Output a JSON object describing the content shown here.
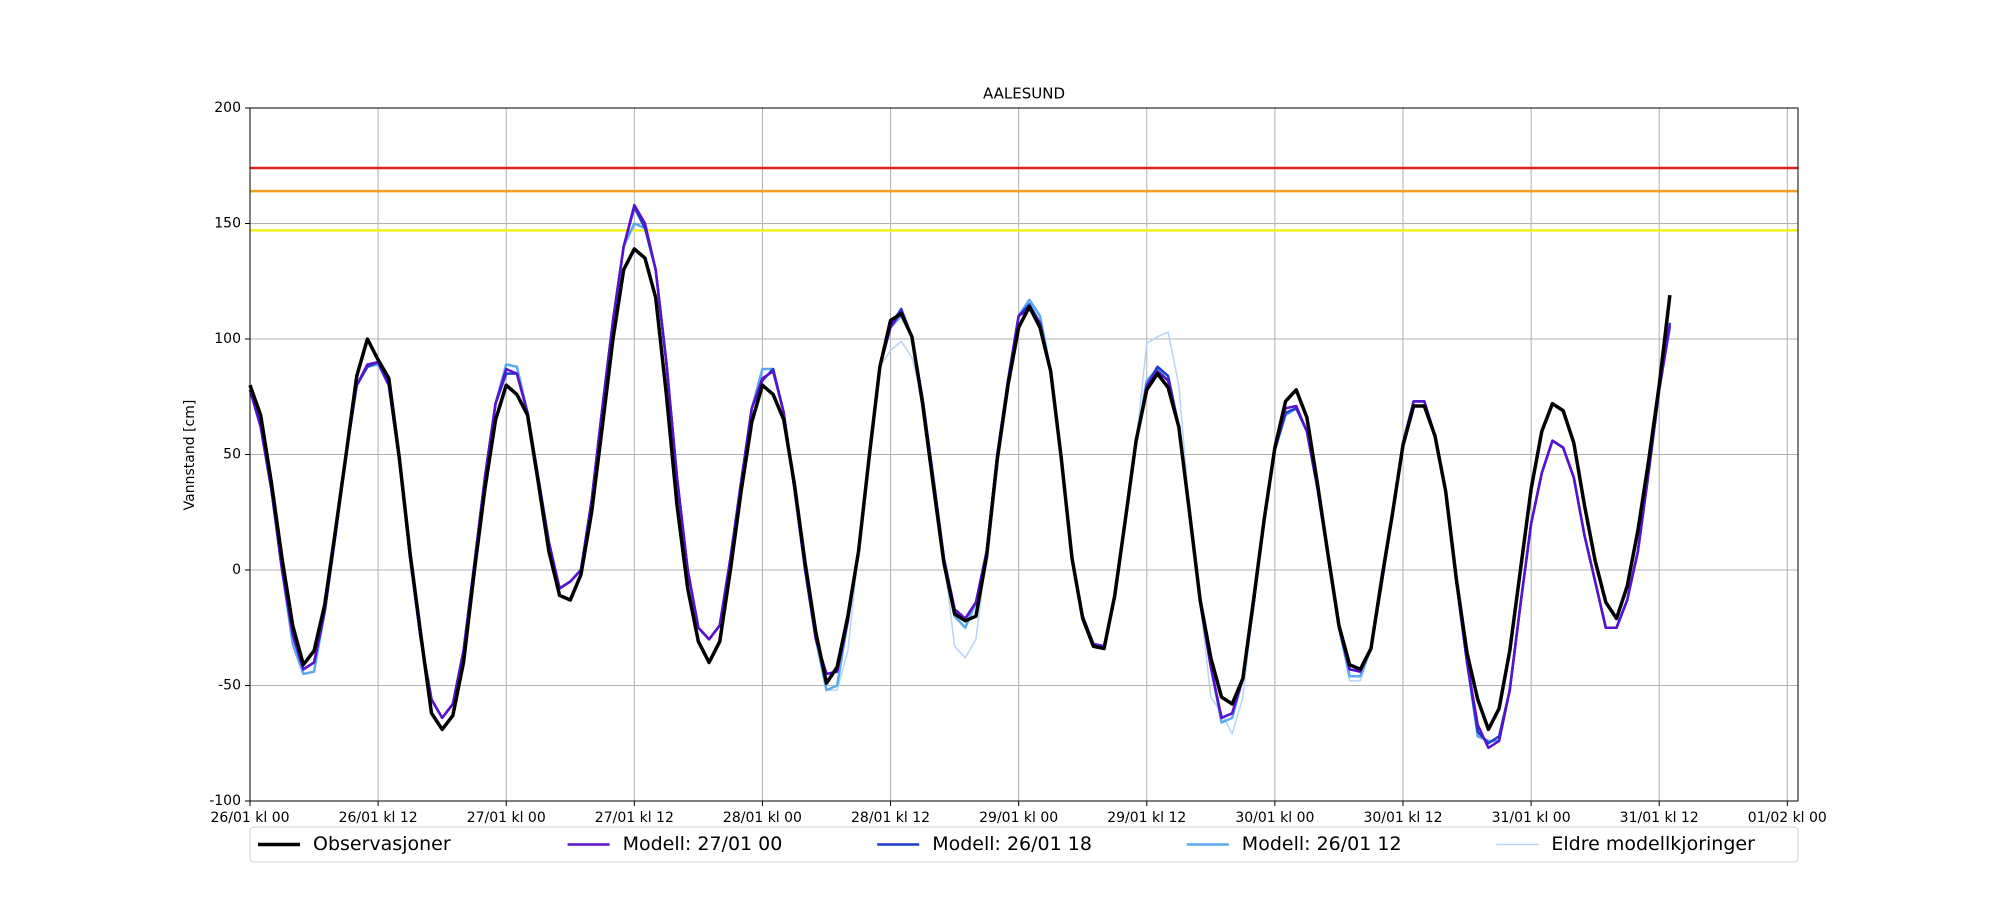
{
  "chart_data": {
    "type": "line",
    "title": "AALESUND",
    "y_label": "Vannstand [cm]",
    "xlim": [
      0,
      145
    ],
    "ylim": [
      -100,
      200
    ],
    "yticks": [
      -100,
      -50,
      0,
      50,
      100,
      150,
      200
    ],
    "xticks": [
      {
        "value": 0,
        "label": "26/01 kl 00"
      },
      {
        "value": 12,
        "label": "26/01 kl 12"
      },
      {
        "value": 24,
        "label": "27/01 kl 00"
      },
      {
        "value": 36,
        "label": "27/01 kl 12"
      },
      {
        "value": 48,
        "label": "28/01 kl 00"
      },
      {
        "value": 60,
        "label": "28/01 kl 12"
      },
      {
        "value": 72,
        "label": "29/01 kl 00"
      },
      {
        "value": 84,
        "label": "29/01 kl 12"
      },
      {
        "value": 96,
        "label": "30/01 kl 00"
      },
      {
        "value": 108,
        "label": "30/01 kl 12"
      },
      {
        "value": 120,
        "label": "31/01 kl 00"
      },
      {
        "value": 132,
        "label": "31/01 kl 12"
      },
      {
        "value": 144,
        "label": "01/02 kl 00"
      }
    ],
    "grid": true,
    "hlines": [
      {
        "value": 174,
        "color": "#e0201b"
      },
      {
        "value": 164,
        "color": "#f0a020"
      },
      {
        "value": 147,
        "color": "#f5f01a"
      }
    ],
    "x": [
      0,
      1,
      2,
      3,
      4,
      5,
      6,
      7,
      8,
      9,
      10,
      11,
      12,
      13,
      14,
      15,
      16,
      17,
      18,
      19,
      20,
      21,
      22,
      23,
      24,
      25,
      26,
      27,
      28,
      29,
      30,
      31,
      32,
      33,
      34,
      35,
      36,
      37,
      38,
      39,
      40,
      41,
      42,
      43,
      44,
      45,
      46,
      47,
      48,
      49,
      50,
      51,
      52,
      53,
      54,
      55,
      56,
      57,
      58,
      59,
      60,
      61,
      62,
      63,
      64,
      65,
      66,
      67,
      68,
      69,
      70,
      71,
      72,
      73,
      74,
      75,
      76,
      77,
      78,
      79,
      80,
      81,
      82,
      83,
      84,
      85,
      86,
      87,
      88,
      89,
      90,
      91,
      92,
      93,
      94,
      95,
      96,
      97,
      98,
      99,
      100,
      101,
      102,
      103,
      104,
      105,
      106,
      107,
      108,
      109,
      110,
      111,
      112,
      113,
      114,
      115,
      116,
      117,
      118,
      119,
      120,
      121,
      122,
      123,
      124,
      125,
      126,
      127,
      128,
      129,
      130,
      131,
      132,
      133
    ],
    "series": [
      {
        "name": "Eldre modellkjoringer",
        "color": "#b8d4f4",
        "width": 1.5,
        "values": [
          78,
          62,
          35,
          0,
          -32,
          -45,
          -44,
          -18,
          15,
          50,
          80,
          88,
          89,
          80,
          47,
          5,
          -30,
          -56,
          -64,
          -58,
          -35,
          2,
          40,
          72,
          89,
          88,
          68,
          40,
          12,
          -8,
          -5,
          0,
          30,
          70,
          108,
          140,
          150,
          148,
          130,
          90,
          40,
          0,
          -25,
          -30,
          -24,
          5,
          38,
          70,
          87,
          87,
          68,
          35,
          0,
          -30,
          -52,
          -52,
          -35,
          8,
          50,
          88,
          95,
          99,
          92,
          74,
          40,
          5,
          -33,
          -38,
          -30,
          8,
          50,
          82,
          110,
          117,
          110,
          86,
          48,
          5,
          -20,
          -32,
          -33,
          -12,
          22,
          55,
          98,
          101,
          103,
          80,
          26,
          -14,
          -55,
          -62,
          -71,
          -55,
          -15,
          22,
          52,
          67,
          70,
          60,
          35,
          5,
          -25,
          -48,
          -48,
          -34,
          -6,
          24,
          55,
          73,
          73,
          58,
          34,
          -5,
          -40,
          -72,
          -74,
          -74,
          -52,
          -15,
          20,
          42,
          56,
          53,
          40,
          15,
          -5,
          -25,
          -25,
          -13,
          8,
          42,
          78,
          105
        ]
      },
      {
        "name": "Modell: 26/01 12",
        "color": "#5aaaf0",
        "width": 2.5,
        "values": [
          78,
          62,
          35,
          0,
          -32,
          -45,
          -44,
          -18,
          15,
          50,
          80,
          88,
          89,
          80,
          47,
          5,
          -30,
          -56,
          -64,
          -58,
          -35,
          2,
          40,
          72,
          89,
          88,
          68,
          40,
          12,
          -8,
          -5,
          0,
          30,
          70,
          108,
          140,
          150,
          148,
          130,
          90,
          40,
          0,
          -25,
          -30,
          -24,
          5,
          38,
          70,
          87,
          87,
          68,
          35,
          0,
          -30,
          -52,
          -50,
          -22,
          8,
          50,
          88,
          105,
          110,
          101,
          74,
          40,
          5,
          -20,
          -25,
          -14,
          8,
          50,
          82,
          110,
          117,
          110,
          86,
          48,
          5,
          -20,
          -32,
          -33,
          -12,
          22,
          55,
          82,
          87,
          82,
          62,
          26,
          -14,
          -42,
          -66,
          -64,
          -47,
          -15,
          22,
          52,
          67,
          70,
          60,
          35,
          5,
          -25,
          -46,
          -46,
          -34,
          -6,
          24,
          55,
          73,
          73,
          58,
          34,
          -5,
          -40,
          -72,
          -74,
          -74,
          -52,
          -15,
          20,
          42,
          56,
          53,
          40,
          15,
          -5,
          -25,
          -25,
          -13,
          8,
          42,
          78,
          105
        ]
      },
      {
        "name": "Modell: 26/01 18",
        "color": "#1c3ccc",
        "width": 2.5,
        "values": [
          78,
          62,
          35,
          0,
          -28,
          -43,
          -40,
          -18,
          15,
          50,
          80,
          88,
          90,
          80,
          47,
          5,
          -30,
          -56,
          -64,
          -58,
          -35,
          2,
          40,
          72,
          85,
          85,
          68,
          40,
          12,
          -8,
          -5,
          0,
          30,
          70,
          108,
          140,
          157,
          148,
          130,
          90,
          40,
          0,
          -25,
          -30,
          -24,
          5,
          38,
          70,
          82,
          87,
          68,
          35,
          0,
          -30,
          -45,
          -44,
          -22,
          8,
          50,
          88,
          106,
          113,
          101,
          74,
          40,
          5,
          -17,
          -21,
          -14,
          8,
          50,
          82,
          110,
          115,
          107,
          86,
          48,
          5,
          -20,
          -32,
          -33,
          -12,
          22,
          55,
          80,
          88,
          84,
          62,
          26,
          -14,
          -42,
          -64,
          -62,
          -47,
          -15,
          22,
          52,
          68,
          70,
          60,
          35,
          5,
          -25,
          -43,
          -44,
          -34,
          -6,
          24,
          55,
          73,
          73,
          58,
          34,
          -5,
          -40,
          -70,
          -75,
          -72,
          -52,
          -15,
          20,
          42,
          56,
          53,
          40,
          15,
          -5,
          -25,
          -25,
          -13,
          8,
          42,
          78,
          107
        ]
      },
      {
        "name": "Modell: 27/01 00",
        "color": "#5a10cc",
        "width": 2.5,
        "values": [
          78,
          62,
          35,
          0,
          -28,
          -43,
          -40,
          -18,
          15,
          50,
          80,
          89,
          90,
          80,
          47,
          5,
          -30,
          -56,
          -64,
          -58,
          -35,
          2,
          40,
          72,
          87,
          85,
          68,
          40,
          12,
          -8,
          -5,
          0,
          30,
          70,
          108,
          140,
          158,
          150,
          130,
          90,
          40,
          0,
          -25,
          -30,
          -24,
          5,
          38,
          70,
          83,
          86,
          68,
          35,
          0,
          -30,
          -45,
          -44,
          -22,
          8,
          50,
          88,
          105,
          112,
          101,
          74,
          40,
          5,
          -17,
          -21,
          -14,
          8,
          50,
          82,
          110,
          113,
          107,
          86,
          48,
          5,
          -20,
          -32,
          -33,
          -12,
          22,
          55,
          80,
          86,
          82,
          62,
          26,
          -14,
          -42,
          -64,
          -62,
          -47,
          -15,
          22,
          52,
          70,
          71,
          60,
          35,
          5,
          -25,
          -43,
          -44,
          -34,
          -6,
          24,
          55,
          73,
          73,
          58,
          34,
          -5,
          -40,
          -67,
          -77,
          -74,
          -52,
          -15,
          20,
          42,
          56,
          53,
          40,
          15,
          -5,
          -25,
          -25,
          -13,
          8,
          42,
          78,
          106
        ]
      },
      {
        "name": "Observasjoner",
        "color": "#000000",
        "width": 3.5,
        "values": [
          80,
          67,
          38,
          5,
          -24,
          -41,
          -35,
          -15,
          17,
          50,
          84,
          100,
          91,
          83,
          48,
          7,
          -28,
          -62,
          -69,
          -63,
          -40,
          -1,
          35,
          65,
          80,
          76,
          67,
          38,
          8,
          -11,
          -13,
          -2,
          25,
          62,
          100,
          130,
          139,
          135,
          118,
          76,
          28,
          -8,
          -31,
          -40,
          -31,
          0,
          34,
          64,
          80,
          76,
          65,
          37,
          3,
          -27,
          -49,
          -42,
          -20,
          8,
          49,
          88,
          108,
          111,
          101,
          72,
          37,
          3,
          -19,
          -22,
          -20,
          6,
          48,
          80,
          105,
          114,
          105,
          86,
          48,
          5,
          -21,
          -33,
          -34,
          -11,
          22,
          56,
          78,
          85,
          79,
          62,
          25,
          -13,
          -38,
          -55,
          -58,
          -47,
          -13,
          22,
          53,
          73,
          78,
          66,
          37,
          6,
          -24,
          -41,
          -43,
          -34,
          -4,
          24,
          54,
          71,
          71,
          58,
          34,
          -4,
          -36,
          -56,
          -69,
          -60,
          -35,
          0,
          35,
          60,
          72,
          69,
          55,
          28,
          4,
          -14,
          -21,
          -7,
          17,
          47,
          80,
          119
        ]
      }
    ],
    "legend_order": [
      4,
      3,
      2,
      1,
      0
    ]
  }
}
